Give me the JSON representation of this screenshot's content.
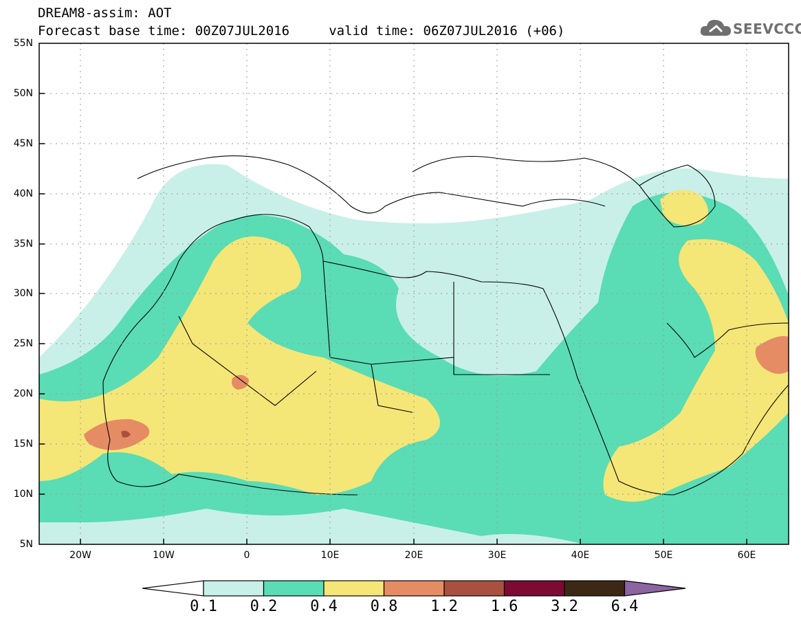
{
  "header": {
    "line1": "DREAM8-assim: AOT",
    "line2": "Forecast base time: 00Z07JUL2016     valid time: 06Z07JUL2016 (+06)"
  },
  "logo": {
    "text": "SEEVCCC",
    "icon": "cloud-icon"
  },
  "axes": {
    "y_labels": [
      "55N",
      "50N",
      "45N",
      "40N",
      "35N",
      "30N",
      "25N",
      "20N",
      "15N",
      "10N",
      "5N"
    ],
    "x_labels": [
      "20W",
      "10W",
      "0",
      "10E",
      "20E",
      "30E",
      "40E",
      "50E",
      "60E"
    ],
    "lon_range": [
      -25,
      65
    ],
    "lat_range": [
      5,
      55
    ]
  },
  "colorbar": {
    "labels": [
      "0.1",
      "0.2",
      "0.4",
      "0.8",
      "1.2",
      "1.6",
      "3.2",
      "6.4"
    ],
    "colors": [
      "#c8f0e8",
      "#5adcb4",
      "#f5e678",
      "#e68c64",
      "#aa5041",
      "#7d0a32",
      "#3c2814",
      "#8c64a0"
    ],
    "under_color": "#ffffff"
  },
  "palette": {
    "frame": "#000000",
    "coast": "#000000",
    "grid": "#999999"
  }
}
